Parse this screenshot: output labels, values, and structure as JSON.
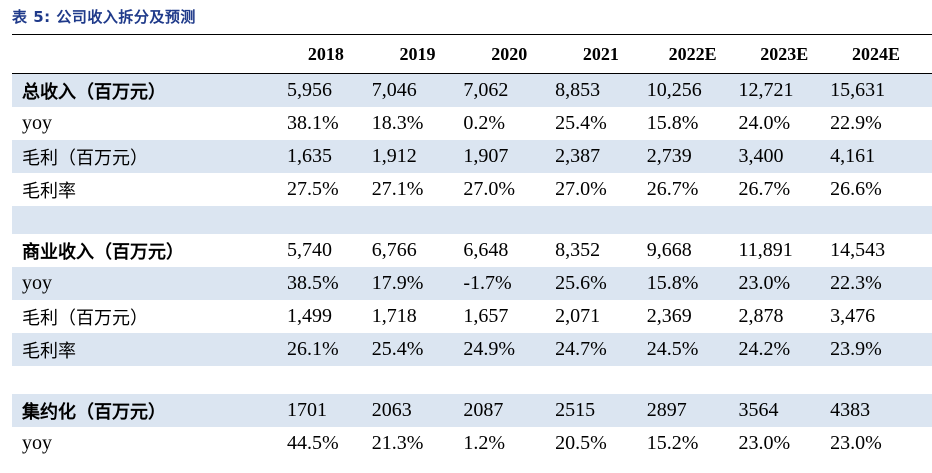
{
  "caption": "表 5:  公司收入拆分及预测",
  "header": {
    "label": "",
    "years": [
      "2018",
      "2019",
      "2020",
      "2021",
      "2022E",
      "2023E",
      "2024E"
    ]
  },
  "rows": [
    {
      "label": "总收入（百万元）",
      "bold": true,
      "shaded": true,
      "values": [
        "5,956",
        "7,046",
        "7,062",
        "8,853",
        "10,256",
        "12,721",
        "15,631"
      ]
    },
    {
      "label": "yoy",
      "bold": false,
      "shaded": false,
      "values": [
        "38.1%",
        "18.3%",
        "0.2%",
        "25.4%",
        "15.8%",
        "24.0%",
        "22.9%"
      ]
    },
    {
      "label": "毛利（百万元）",
      "bold": false,
      "shaded": true,
      "values": [
        "1,635",
        "1,912",
        "1,907",
        "2,387",
        "2,739",
        "3,400",
        "4,161"
      ]
    },
    {
      "label": "毛利率",
      "bold": false,
      "shaded": false,
      "values": [
        "27.5%",
        "27.1%",
        "27.0%",
        "27.0%",
        "26.7%",
        "26.7%",
        "26.6%"
      ]
    },
    {
      "label": "商业收入（百万元）",
      "bold": true,
      "shaded": false,
      "values": [
        "5,740",
        "6,766",
        "6,648",
        "8,352",
        "9,668",
        "11,891",
        "14,543"
      ]
    },
    {
      "label": "yoy",
      "bold": false,
      "shaded": true,
      "values": [
        "38.5%",
        "17.9%",
        "-1.7%",
        "25.6%",
        "15.8%",
        "23.0%",
        "22.3%"
      ]
    },
    {
      "label": "毛利（百万元）",
      "bold": false,
      "shaded": false,
      "values": [
        "1,499",
        "1,718",
        "1,657",
        "2,071",
        "2,369",
        "2,878",
        "3,476"
      ]
    },
    {
      "label": "毛利率",
      "bold": false,
      "shaded": true,
      "values": [
        "26.1%",
        "25.4%",
        "24.9%",
        "24.7%",
        "24.5%",
        "24.2%",
        "23.9%"
      ]
    },
    {
      "label": "集约化（百万元）",
      "bold": true,
      "shaded": true,
      "values": [
        "1701",
        "2063",
        "2087",
        "2515",
        "2897",
        "3564",
        "4383"
      ]
    },
    {
      "label": "yoy",
      "bold": false,
      "shaded": false,
      "values": [
        "44.5%",
        "21.3%",
        "1.2%",
        "20.5%",
        "15.2%",
        "23.0%",
        "23.0%"
      ]
    }
  ],
  "colors": {
    "caption": "#1f3a8a",
    "shade": "#dbe5f1",
    "rule": "#000000"
  }
}
